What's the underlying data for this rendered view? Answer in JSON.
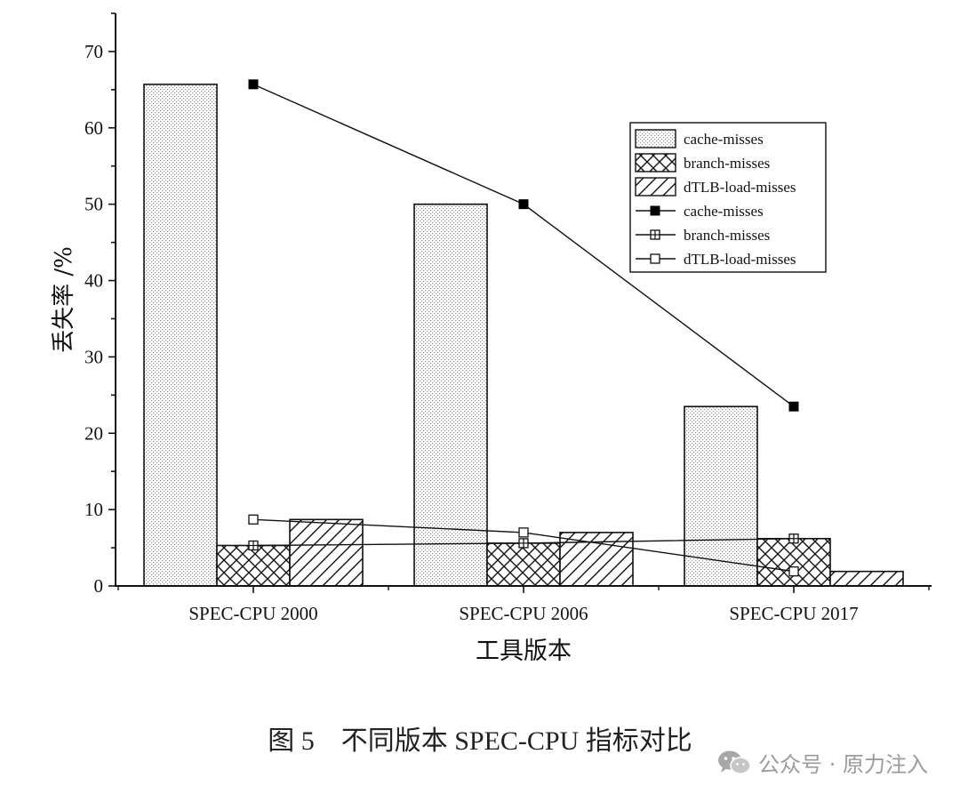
{
  "chart_data": {
    "type": "bar",
    "categories": [
      "SPEC-CPU 2000",
      "SPEC-CPU 2006",
      "SPEC-CPU 2017"
    ],
    "xlabel": "工具版本",
    "ylabel": "丢失率 /%",
    "ylim": [
      0,
      75
    ],
    "yticks": [
      0,
      10,
      20,
      30,
      40,
      50,
      60,
      70
    ],
    "grid": false,
    "legend_position": "top-right",
    "bar_series": [
      {
        "name": "cache-misses",
        "pattern": "dots",
        "values": [
          65.7,
          50.0,
          23.5
        ]
      },
      {
        "name": "branch-misses",
        "pattern": "crosshatch",
        "values": [
          5.3,
          5.6,
          6.2
        ]
      },
      {
        "name": "dTLB-load-misses",
        "pattern": "diagonal",
        "values": [
          8.7,
          7.0,
          1.9
        ]
      }
    ],
    "line_series": [
      {
        "name": "cache-misses",
        "marker": "filled-square",
        "values": [
          65.7,
          50.0,
          23.5
        ]
      },
      {
        "name": "branch-misses",
        "marker": "crossed-square",
        "values": [
          5.3,
          5.6,
          6.2
        ]
      },
      {
        "name": "dTLB-load-misses",
        "marker": "open-square",
        "values": [
          8.7,
          7.0,
          1.9
        ]
      }
    ]
  },
  "caption": "图 5　不同版本 SPEC-CPU 指标对比",
  "watermark": "公众号 · 原力注入"
}
